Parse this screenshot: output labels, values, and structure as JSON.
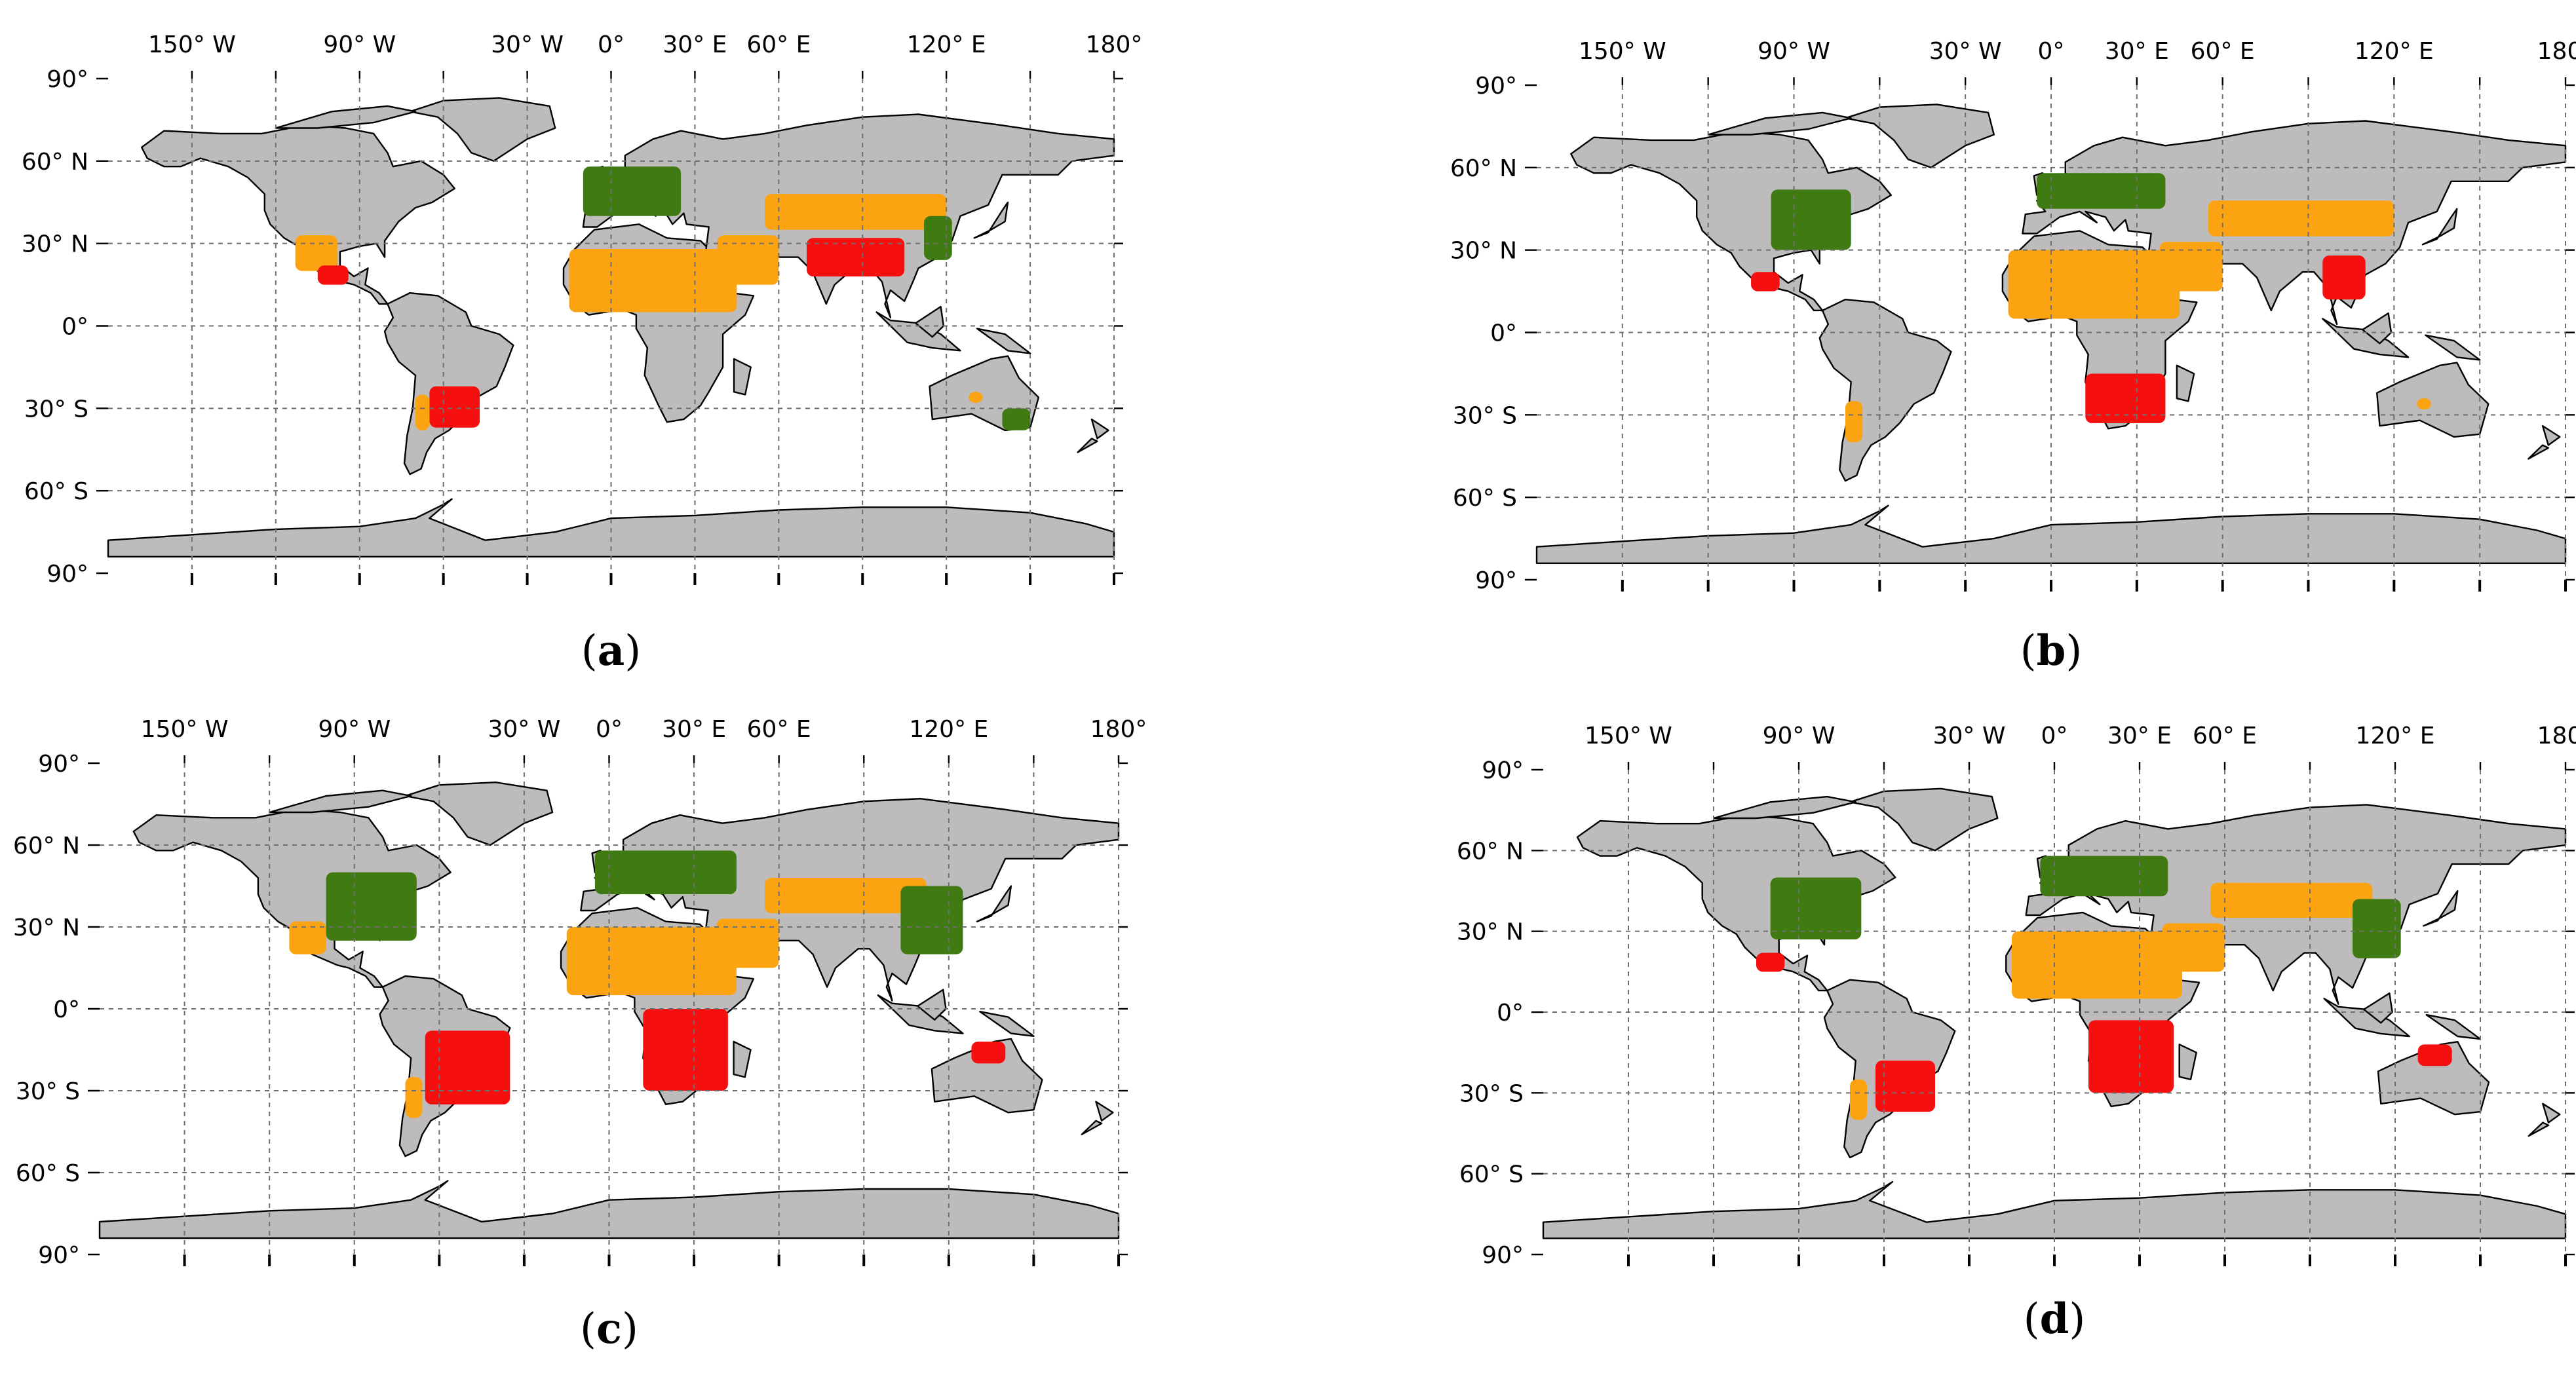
{
  "figure": {
    "panels": [
      {
        "id": "a",
        "caption_open": "(",
        "caption_letter": "a",
        "caption_close": ")",
        "regions": [
          {
            "color_key": "green",
            "lon": [
              -10,
              25
            ],
            "lat": [
              40,
              58
            ]
          },
          {
            "color_key": "orange",
            "lon": [
              -15,
              45
            ],
            "lat": [
              5,
              28
            ]
          },
          {
            "color_key": "orange",
            "lon": [
              38,
              60
            ],
            "lat": [
              15,
              33
            ]
          },
          {
            "color_key": "orange",
            "lon": [
              55,
              120
            ],
            "lat": [
              35,
              48
            ]
          },
          {
            "color_key": "red",
            "lon": [
              70,
              105
            ],
            "lat": [
              18,
              32
            ]
          },
          {
            "color_key": "green",
            "lon": [
              112,
              122
            ],
            "lat": [
              24,
              40
            ]
          },
          {
            "color_key": "orange",
            "lon": [
              -113,
              -98
            ],
            "lat": [
              20,
              33
            ]
          },
          {
            "color_key": "red",
            "lon": [
              -105,
              -94
            ],
            "lat": [
              15,
              22
            ]
          },
          {
            "color_key": "red",
            "lon": [
              -65,
              -47
            ],
            "lat": [
              -37,
              -22
            ]
          },
          {
            "color_key": "orange",
            "lon": [
              -70,
              -65
            ],
            "lat": [
              -38,
              -25
            ]
          },
          {
            "color_key": "green",
            "lon": [
              140,
              150
            ],
            "lat": [
              -38,
              -30
            ]
          },
          {
            "color_key": "orange",
            "lon": [
              128,
              133
            ],
            "lat": [
              -28,
              -24
            ]
          }
        ]
      },
      {
        "id": "b",
        "caption_open": "(",
        "caption_letter": "b",
        "caption_close": ")",
        "regions": [
          {
            "color_key": "green",
            "lon": [
              -98,
              -70
            ],
            "lat": [
              30,
              52
            ]
          },
          {
            "color_key": "green",
            "lon": [
              -5,
              40
            ],
            "lat": [
              45,
              58
            ]
          },
          {
            "color_key": "orange",
            "lon": [
              -15,
              45
            ],
            "lat": [
              5,
              30
            ]
          },
          {
            "color_key": "orange",
            "lon": [
              38,
              60
            ],
            "lat": [
              15,
              33
            ]
          },
          {
            "color_key": "orange",
            "lon": [
              55,
              120
            ],
            "lat": [
              35,
              48
            ]
          },
          {
            "color_key": "red",
            "lon": [
              95,
              110
            ],
            "lat": [
              12,
              28
            ]
          },
          {
            "color_key": "red",
            "lon": [
              -105,
              -95
            ],
            "lat": [
              15,
              22
            ]
          },
          {
            "color_key": "red",
            "lon": [
              12,
              40
            ],
            "lat": [
              -33,
              -15
            ]
          },
          {
            "color_key": "orange",
            "lon": [
              -72,
              -66
            ],
            "lat": [
              -40,
              -25
            ]
          },
          {
            "color_key": "orange",
            "lon": [
              128,
              133
            ],
            "lat": [
              -28,
              -24
            ]
          }
        ]
      },
      {
        "id": "c",
        "caption_open": "(",
        "caption_letter": "c",
        "caption_close": ")",
        "regions": [
          {
            "color_key": "green",
            "lon": [
              -100,
              -68
            ],
            "lat": [
              25,
              50
            ]
          },
          {
            "color_key": "green",
            "lon": [
              -5,
              45
            ],
            "lat": [
              42,
              58
            ]
          },
          {
            "color_key": "orange",
            "lon": [
              -15,
              45
            ],
            "lat": [
              5,
              30
            ]
          },
          {
            "color_key": "orange",
            "lon": [
              38,
              60
            ],
            "lat": [
              15,
              33
            ]
          },
          {
            "color_key": "orange",
            "lon": [
              55,
              112
            ],
            "lat": [
              35,
              48
            ]
          },
          {
            "color_key": "green",
            "lon": [
              103,
              125
            ],
            "lat": [
              20,
              45
            ]
          },
          {
            "color_key": "red",
            "lon": [
              -65,
              -35
            ],
            "lat": [
              -35,
              -8
            ]
          },
          {
            "color_key": "orange",
            "lon": [
              -72,
              -66
            ],
            "lat": [
              -40,
              -25
            ]
          },
          {
            "color_key": "red",
            "lon": [
              12,
              42
            ],
            "lat": [
              -30,
              0
            ]
          },
          {
            "color_key": "red",
            "lon": [
              128,
              140
            ],
            "lat": [
              -20,
              -12
            ]
          },
          {
            "color_key": "orange",
            "lon": [
              -113,
              -100
            ],
            "lat": [
              20,
              32
            ]
          }
        ]
      },
      {
        "id": "d",
        "caption_open": "(",
        "caption_letter": "d",
        "caption_close": ")",
        "regions": [
          {
            "color_key": "green",
            "lon": [
              -100,
              -68
            ],
            "lat": [
              27,
              50
            ]
          },
          {
            "color_key": "green",
            "lon": [
              -5,
              40
            ],
            "lat": [
              43,
              58
            ]
          },
          {
            "color_key": "orange",
            "lon": [
              -15,
              45
            ],
            "lat": [
              5,
              30
            ]
          },
          {
            "color_key": "orange",
            "lon": [
              38,
              60
            ],
            "lat": [
              15,
              33
            ]
          },
          {
            "color_key": "orange",
            "lon": [
              55,
              112
            ],
            "lat": [
              35,
              48
            ]
          },
          {
            "color_key": "green",
            "lon": [
              105,
              122
            ],
            "lat": [
              20,
              42
            ]
          },
          {
            "color_key": "red",
            "lon": [
              -105,
              -95
            ],
            "lat": [
              15,
              22
            ]
          },
          {
            "color_key": "red",
            "lon": [
              -63,
              -42
            ],
            "lat": [
              -37,
              -18
            ]
          },
          {
            "color_key": "orange",
            "lon": [
              -72,
              -66
            ],
            "lat": [
              -40,
              -25
            ]
          },
          {
            "color_key": "red",
            "lon": [
              12,
              42
            ],
            "lat": [
              -30,
              -3
            ]
          },
          {
            "color_key": "red",
            "lon": [
              128,
              140
            ],
            "lat": [
              -20,
              -12
            ]
          }
        ]
      }
    ],
    "x_tick_labels": [
      {
        "lon": -150,
        "label": "150° W"
      },
      {
        "lon": -90,
        "label": "90° W"
      },
      {
        "lon": -30,
        "label": "30° W"
      },
      {
        "lon": 0,
        "label": "0°"
      },
      {
        "lon": 30,
        "label": "30° E"
      },
      {
        "lon": 60,
        "label": "60° E"
      },
      {
        "lon": 120,
        "label": "120° E"
      },
      {
        "lon": 180,
        "label": "180°"
      }
    ],
    "y_tick_labels": [
      {
        "lat": 90,
        "label": "90°"
      },
      {
        "lat": 60,
        "label": "60° N"
      },
      {
        "lat": 30,
        "label": "30° N"
      },
      {
        "lat": 0,
        "label": "0°"
      },
      {
        "lat": -30,
        "label": "30° S"
      },
      {
        "lat": -60,
        "label": "60° S"
      },
      {
        "lat": -90,
        "label": "90°"
      }
    ],
    "gridline_lons": [
      -150,
      -120,
      -90,
      -60,
      -30,
      0,
      30,
      60,
      90,
      120,
      150,
      180
    ],
    "gridline_lats": [
      60,
      30,
      0,
      -30,
      -60
    ],
    "extent": {
      "lon": [
        -180,
        180
      ],
      "lat": [
        -90,
        90
      ]
    },
    "grid": "on",
    "colors": {
      "land": "#bdbbbb",
      "coast": "#000000",
      "green": "#3f7a13",
      "orange": "#fca311",
      "red": "#f50f0f",
      "grid": "#6f6f6f"
    }
  }
}
